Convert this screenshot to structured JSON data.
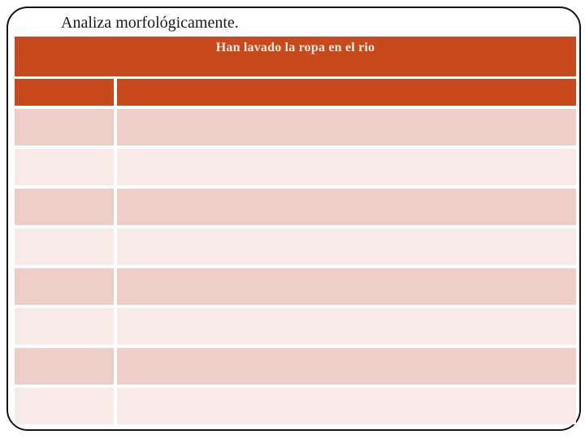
{
  "slide": {
    "title": "Analiza morfológicamente."
  },
  "banner": {
    "text": "Han lavado la ropa en el rio"
  },
  "table": {
    "columns": 2,
    "rows": [
      {
        "cells": [
          "",
          ""
        ]
      },
      {
        "cells": [
          "",
          ""
        ]
      },
      {
        "cells": [
          "",
          ""
        ]
      },
      {
        "cells": [
          "",
          ""
        ]
      },
      {
        "cells": [
          "",
          ""
        ]
      },
      {
        "cells": [
          "",
          ""
        ]
      },
      {
        "cells": [
          "",
          ""
        ]
      },
      {
        "cells": [
          "",
          ""
        ]
      },
      {
        "cells": [
          "",
          ""
        ]
      }
    ]
  },
  "colors": {
    "accent_orange": "#C8491C",
    "row_dark_pink": "#EDCEC9",
    "row_light_pink": "#F8EAE7",
    "banner_text": "#F2EDDE",
    "frame_border": "#151515"
  }
}
